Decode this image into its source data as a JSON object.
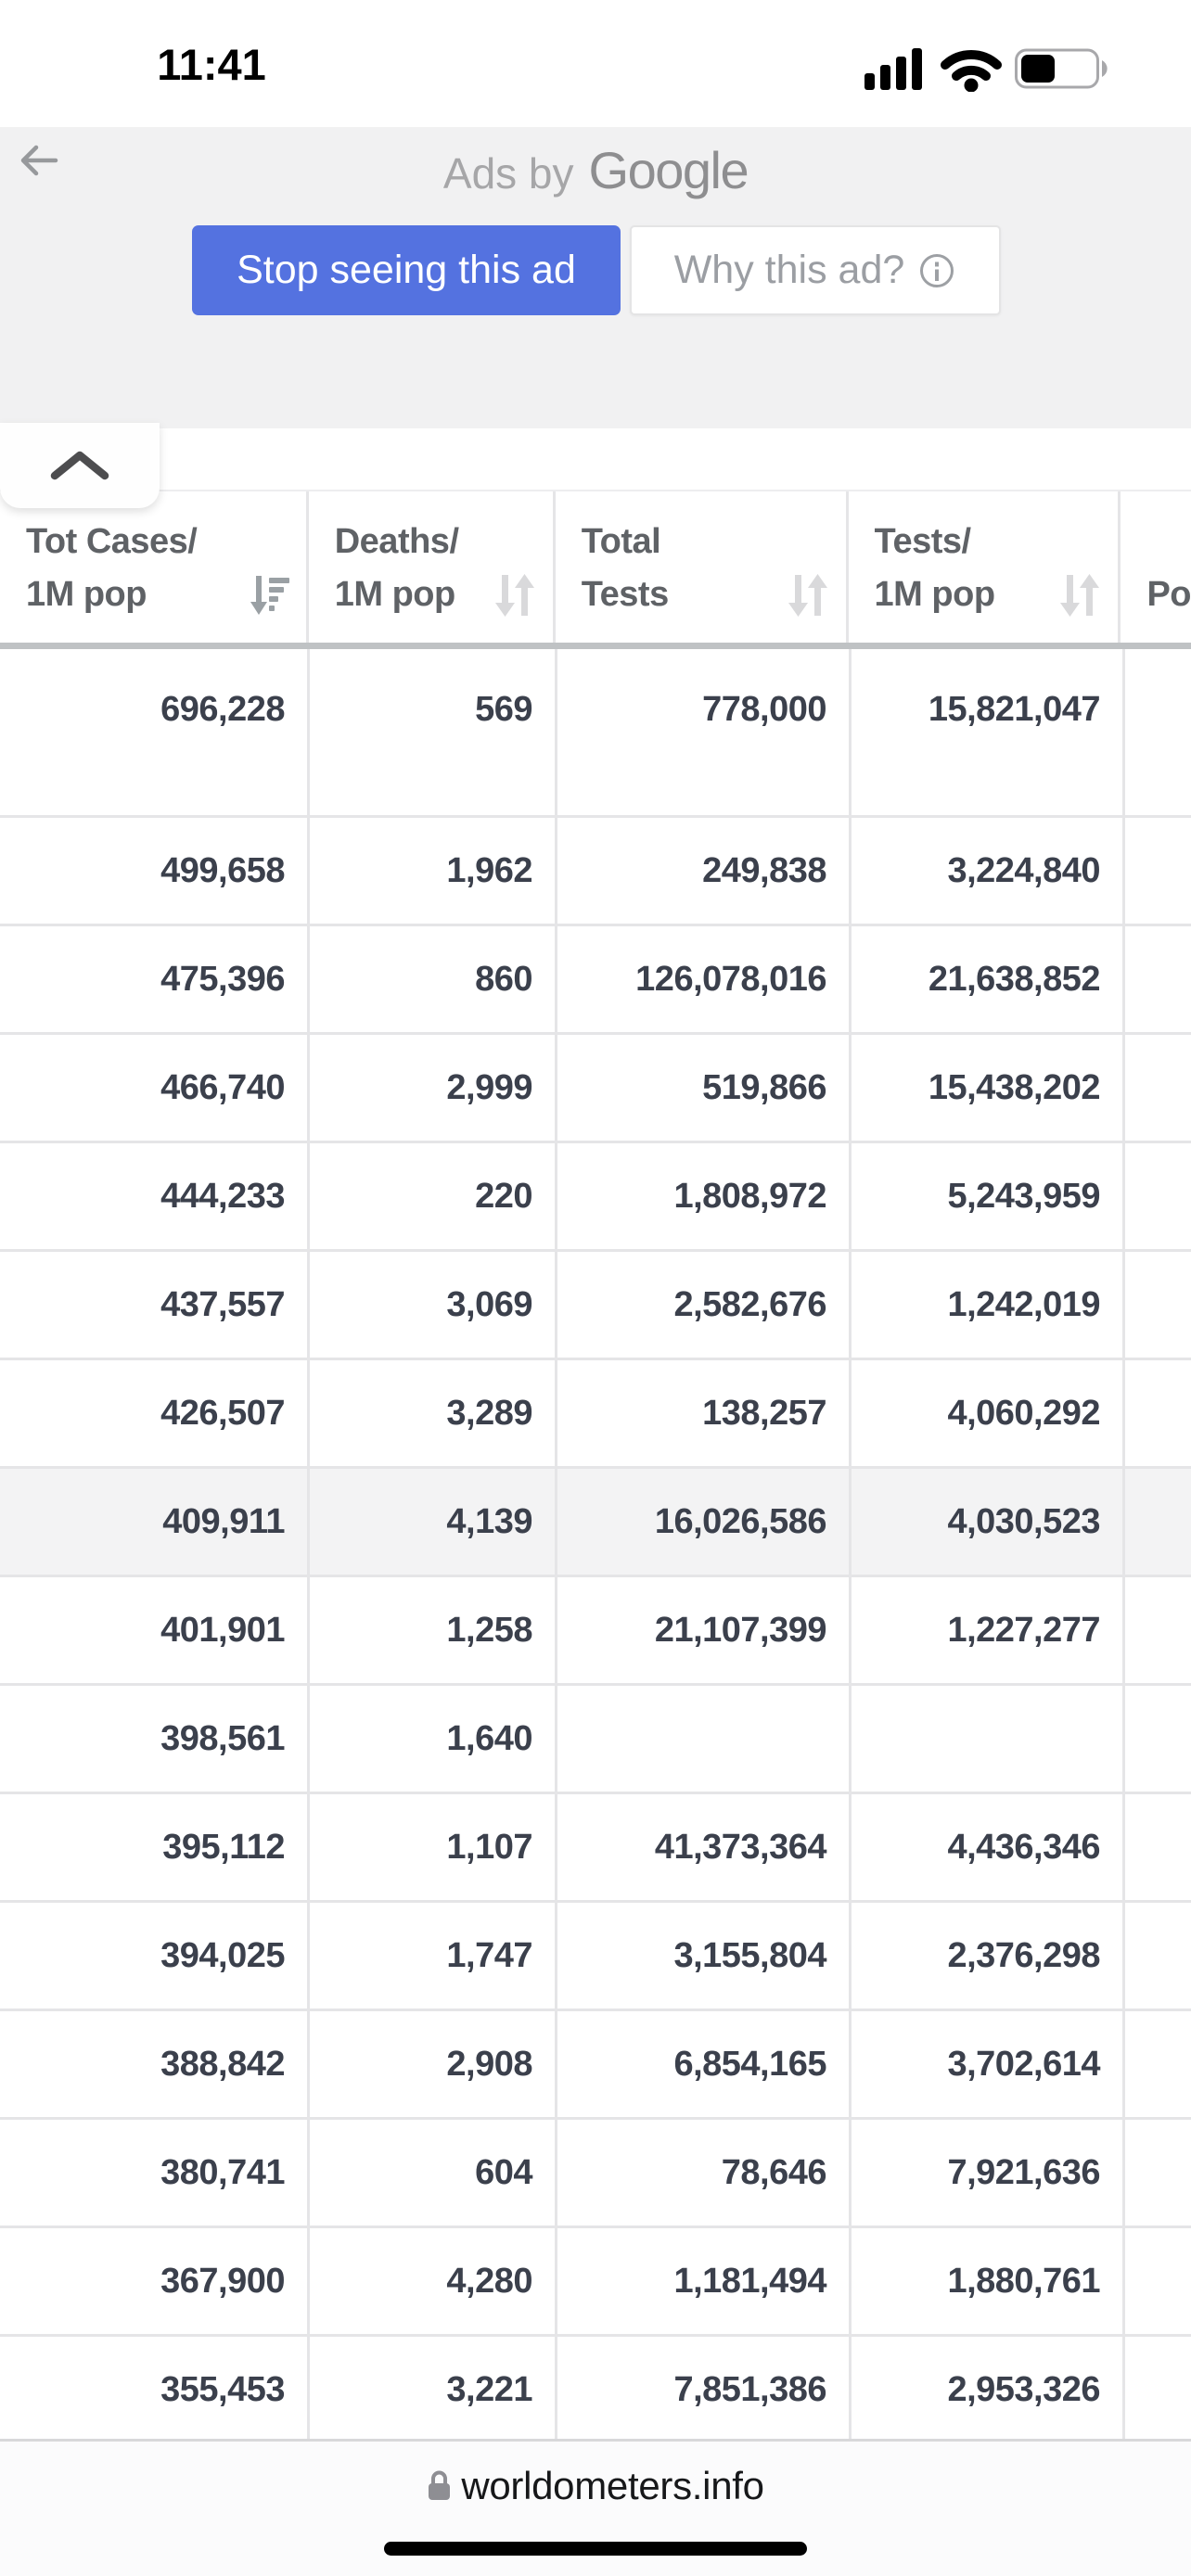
{
  "status_bar": {
    "time": "11:41",
    "battery_level": 0.4,
    "signal_bars": 4
  },
  "ad": {
    "label_prefix": "Ads by",
    "label_brand": "Google",
    "stop_button": "Stop seeing this ad",
    "why_button": "Why this ad?"
  },
  "collapse_tab": {
    "icon": "chevron-up-icon"
  },
  "table": {
    "columns": [
      {
        "id": "tot-cases-1m",
        "line1": "Tot Cases/",
        "line2": "1M pop",
        "sort": "sort-descending-active"
      },
      {
        "id": "deaths-1m",
        "line1": "Deaths/",
        "line2": "1M pop",
        "sort": "sort-both"
      },
      {
        "id": "total-tests",
        "line1": "Total",
        "line2": "Tests",
        "sort": "sort-both"
      },
      {
        "id": "tests-1m",
        "line1": "Tests/",
        "line2": "1M pop",
        "sort": "sort-both"
      },
      {
        "id": "population",
        "line1": "",
        "line2": "Po",
        "sort": null
      }
    ],
    "highlight_row_index": 7,
    "rows": [
      [
        "696,228",
        "569",
        "778,000",
        "15,821,047",
        ""
      ],
      [
        "499,658",
        "1,962",
        "249,838",
        "3,224,840",
        ""
      ],
      [
        "475,396",
        "860",
        "126,078,016",
        "21,638,852",
        ""
      ],
      [
        "466,740",
        "2,999",
        "519,866",
        "15,438,202",
        ""
      ],
      [
        "444,233",
        "220",
        "1,808,972",
        "5,243,959",
        ""
      ],
      [
        "437,557",
        "3,069",
        "2,582,676",
        "1,242,019",
        ""
      ],
      [
        "426,507",
        "3,289",
        "138,257",
        "4,060,292",
        ""
      ],
      [
        "409,911",
        "4,139",
        "16,026,586",
        "4,030,523",
        ""
      ],
      [
        "401,901",
        "1,258",
        "21,107,399",
        "1,227,277",
        ""
      ],
      [
        "398,561",
        "1,640",
        "",
        "",
        ""
      ],
      [
        "395,112",
        "1,107",
        "41,373,364",
        "4,436,346",
        ""
      ],
      [
        "394,025",
        "1,747",
        "3,155,804",
        "2,376,298",
        ""
      ],
      [
        "388,842",
        "2,908",
        "6,854,165",
        "3,702,614",
        ""
      ],
      [
        "380,741",
        "604",
        "78,646",
        "7,921,636",
        ""
      ],
      [
        "367,900",
        "4,280",
        "1,181,494",
        "1,880,761",
        ""
      ],
      [
        "355,453",
        "3,221",
        "7,851,386",
        "2,953,326",
        ""
      ]
    ]
  },
  "footer": {
    "url": "worldometers.info",
    "lock_icon": "lock-icon"
  },
  "colors": {
    "accent_blue": "#5472e0",
    "ad_background": "#f1f1f2",
    "row_highlight": "#f3f3f4",
    "cell_text": "#3b404c",
    "header_text": "#5f6266",
    "grid_border": "#e5e5e7"
  }
}
